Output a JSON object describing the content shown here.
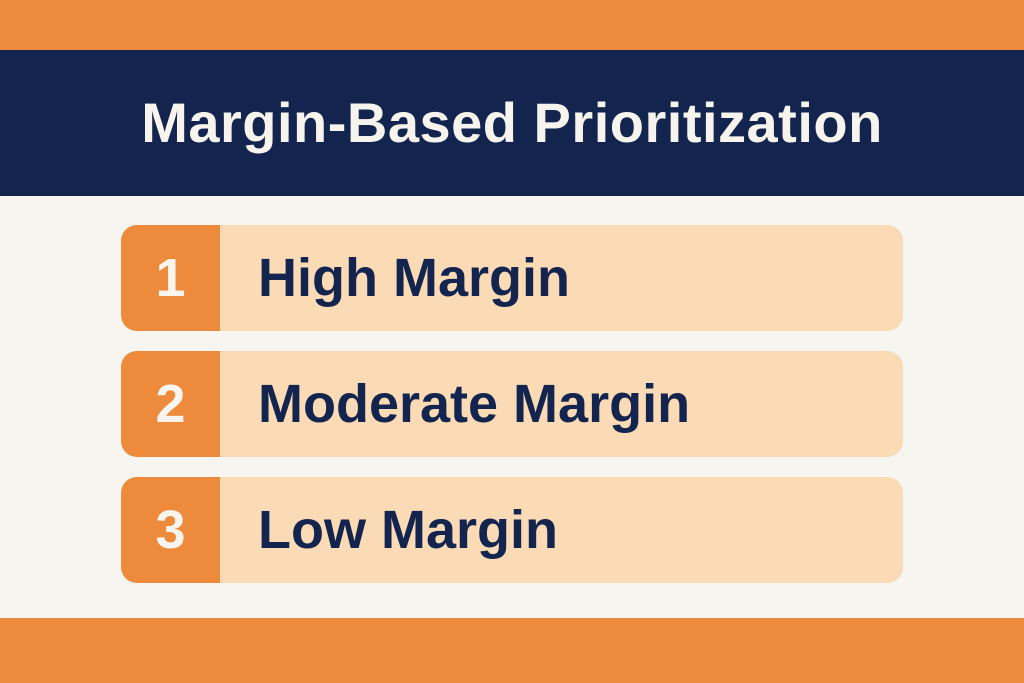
{
  "header": {
    "title": "Margin-Based Prioritization"
  },
  "list": {
    "items": [
      {
        "number": "1",
        "label": "High Margin"
      },
      {
        "number": "2",
        "label": "Moderate Margin"
      },
      {
        "number": "3",
        "label": "Low Margin"
      }
    ]
  },
  "colors": {
    "accent_orange": "#EE8A3C",
    "navy": "#13254E",
    "cream": "#F7F5EF",
    "peach": "#FBDBB5",
    "title_text": "#F7F4ED",
    "badge_text": "#F8F5EF"
  }
}
